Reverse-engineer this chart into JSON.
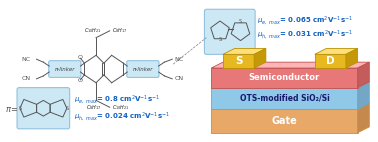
{
  "bg_color": "#ffffff",
  "thiophene_box_color": "#cce8f4",
  "bdt_box_color": "#cce8f4",
  "linker_box_color": "#cce8f4",
  "mu_color": "#1060c0",
  "layer_semiconductor_color": "#e87878",
  "layer_ots_color": "#90c8e8",
  "layer_gate_color": "#e8a868",
  "layer_s_color": "#e8b820",
  "layer_d_color": "#e8b820",
  "layer_semiconductor_label": "Semiconductor",
  "layer_ots_label": "OTS-modified SiO₂/Si",
  "layer_gate_label": "Gate",
  "label_s": "S",
  "label_d": "D",
  "text_color_white": "#ffffff",
  "text_color_dark": "#222222",
  "text_color_gray": "#555555",
  "ots_text_color": "#1a1a6e",
  "top_mu_e": "$\\mu_{e,\\ max}$= 0.065 cm$^2$V$^{-1}$s$^{-1}$",
  "top_mu_h": "$\\mu_{h,\\ max}$= 0.031 cm$^2$V$^{-1}$s$^{-1}$",
  "bot_mu_e": "$\\mu_{e,\\ max}$= 0.8 cm$^2$V$^{-1}$s$^{-1}$",
  "bot_mu_h": "$\\mu_{h,\\ max}$= 0.024 cm$^2$V$^{-1}$s$^{-1}$",
  "pi_label": "$\\pi$=",
  "nc_label": "NC",
  "cn_label": "CN",
  "c10h21_label": "$C_{10}H_{21}$",
  "c8h17_label": "$C_8H_{17}$",
  "o_label": "O",
  "n_label": "N",
  "pi_linker_label": "π-linker"
}
